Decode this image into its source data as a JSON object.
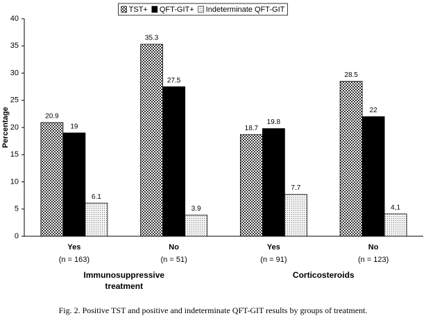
{
  "chart_data": {
    "type": "bar",
    "ylabel": "Percentage",
    "ylim": [
      0,
      40
    ],
    "yticks": [
      0,
      5,
      10,
      15,
      20,
      25,
      30,
      35,
      40
    ],
    "grid": false,
    "legend": "top",
    "categories": [
      "Yes",
      "No",
      "Yes",
      "No"
    ],
    "category_notes": [
      "(n = 163)",
      "(n = 51)",
      "(n = 91)",
      "(n = 123)"
    ],
    "group_labels": [
      [
        "Immunosuppressive",
        "treatment"
      ],
      [
        "Corticosteroids"
      ]
    ],
    "series": [
      {
        "name": "TST+",
        "color": "#555555",
        "pattern": "checker",
        "values": [
          20.9,
          35.3,
          18.7,
          28.5
        ]
      },
      {
        "name": "QFT-GIT+",
        "color": "#000000",
        "pattern": "solid",
        "values": [
          19,
          27.5,
          19.8,
          22
        ]
      },
      {
        "name": "Indeterminate QFT-GIT",
        "color": "#bbbbbb",
        "pattern": "dots",
        "values": [
          6.1,
          3.9,
          7.7,
          4.1
        ],
        "value_labels": [
          "6.1",
          "3.9",
          "7.7",
          "4,1"
        ]
      }
    ],
    "caption": "Fig. 2. Positive TST and positive and indeterminate QFT-GIT results by groups of treatment."
  }
}
